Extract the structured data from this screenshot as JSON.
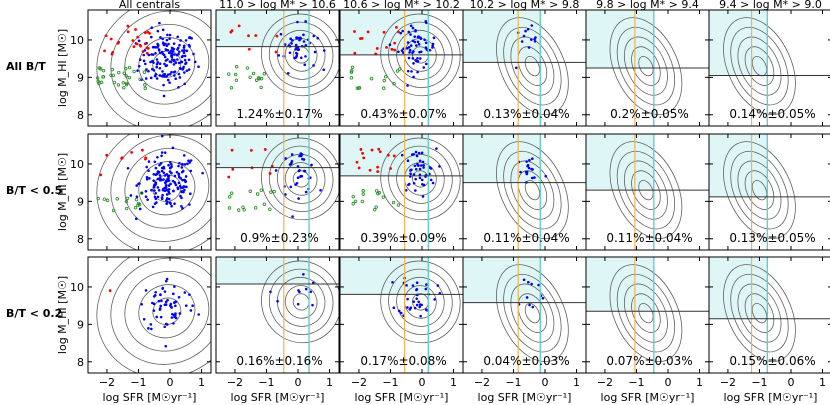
{
  "chart_data": {
    "type": "scatter",
    "grid": false,
    "columns": [
      {
        "title": "All centrals"
      },
      {
        "title": "11.0 > log M* > 10.6",
        "sfr_line": 0.35,
        "sfr_line_orange": -0.45
      },
      {
        "title": "10.6 > log M* > 10.2",
        "sfr_line": 0.2,
        "sfr_line_orange": -0.55
      },
      {
        "title": "10.2 > log M* > 9.8",
        "sfr_line": -0.15,
        "sfr_line_orange": -0.85
      },
      {
        "title": "9.8 > log M* > 9.4",
        "sfr_line": -0.45,
        "sfr_line_orange": -1.05
      },
      {
        "title": "9.4 > log M* > 9.0",
        "sfr_line": -0.75,
        "sfr_line_orange": -1.25
      }
    ],
    "rows": [
      {
        "label": "All B/T",
        "hi_lines": [
          null,
          9.82,
          9.6,
          9.4,
          9.25,
          9.05
        ],
        "fractions": [
          "",
          "1.24%±0.17%",
          "0.43%±0.07%",
          "0.13%±0.04%",
          "0.2%±0.05%",
          "0.14%±0.05%"
        ]
      },
      {
        "label": "B/T < 0.5",
        "hi_lines": [
          null,
          9.9,
          9.68,
          9.5,
          9.3,
          9.12
        ],
        "fractions": [
          "",
          "0.9%±0.23%",
          "0.39%±0.09%",
          "0.11%±0.04%",
          "0.11%±0.04%",
          "0.13%±0.05%"
        ]
      },
      {
        "label": "B/T < 0.2",
        "hi_lines": [
          null,
          10.08,
          9.8,
          9.58,
          9.35,
          9.15
        ],
        "fractions": [
          "",
          "0.16%±0.16%",
          "0.17%±0.08%",
          "0.04%±0.03%",
          "0.07%±0.03%",
          "0.15%±0.06%"
        ]
      }
    ],
    "xlabel": "log SFR [M☉yr⁻¹]",
    "ylabel": "log M_HI [M☉]",
    "xlim": [
      -2.6,
      1.3
    ],
    "ylim": [
      7.7,
      10.8
    ],
    "xticks": [
      -2,
      -1,
      0,
      1
    ],
    "xtick_labels": [
      "−2",
      "−1",
      "0",
      "1"
    ],
    "yticks": [
      8,
      9,
      10
    ],
    "ytick_labels": [
      "8",
      "9",
      "10"
    ],
    "colors": {
      "blue": "#0000ff",
      "red": "#ff0000",
      "green": "#228b22",
      "contour": "#606060",
      "shade": "#dff6f6",
      "cyan": "#66cccc",
      "orange": "#f2b24d"
    }
  }
}
